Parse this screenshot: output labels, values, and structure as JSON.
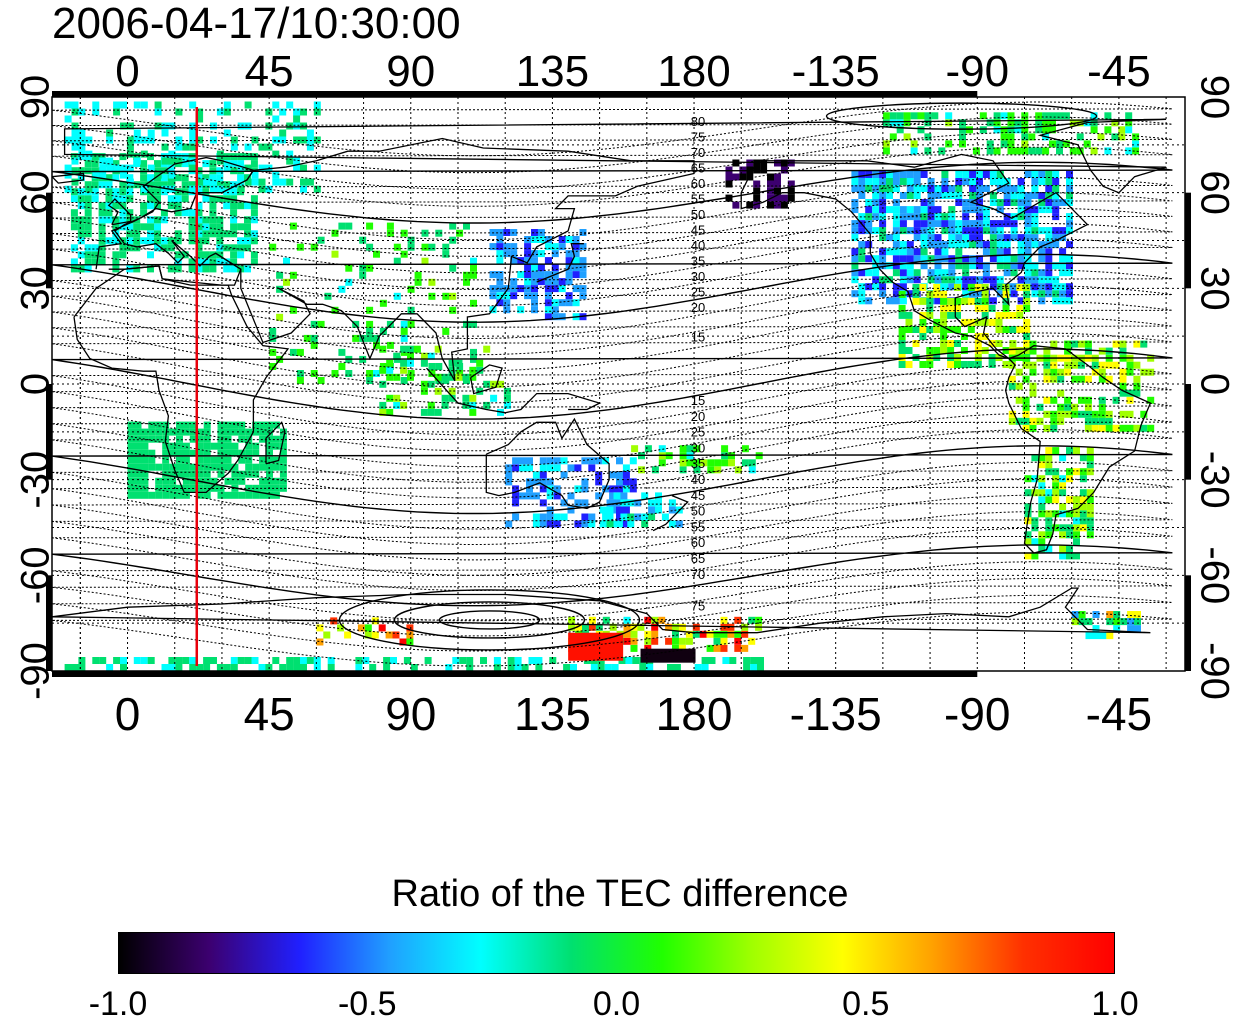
{
  "title": "2006-04-17/10:30:00",
  "map": {
    "lon_ticks": [
      "0",
      "45",
      "90",
      "135",
      "180",
      "-135",
      "-90",
      "-45"
    ],
    "lat_ticks": [
      "90",
      "60",
      "30",
      "0",
      "-30",
      "-60",
      "-90"
    ],
    "north_contour_labels": [
      "80",
      "75",
      "70",
      "65",
      "60",
      "55",
      "50",
      "45",
      "40",
      "35",
      "30",
      "25",
      "20",
      "15"
    ],
    "south_contour_labels": [
      "15",
      "20",
      "25",
      "30",
      "35",
      "40",
      "45",
      "50",
      "55",
      "60",
      "65",
      "70",
      "75"
    ],
    "terminator_line_color": "#e8000b",
    "terminator_longitude": 22
  },
  "colorbar": {
    "title": "Ratio of the TEC difference",
    "labels": [
      "-1.0",
      "-0.5",
      "0.0",
      "0.5",
      "1.0"
    ],
    "stops": [
      "#000000",
      "#3c0070",
      "#2020ff",
      "#20a0ff",
      "#00ffff",
      "#00e070",
      "#20ff00",
      "#a0ff00",
      "#ffff00",
      "#ffa000",
      "#ff3000",
      "#ff0000"
    ]
  }
}
